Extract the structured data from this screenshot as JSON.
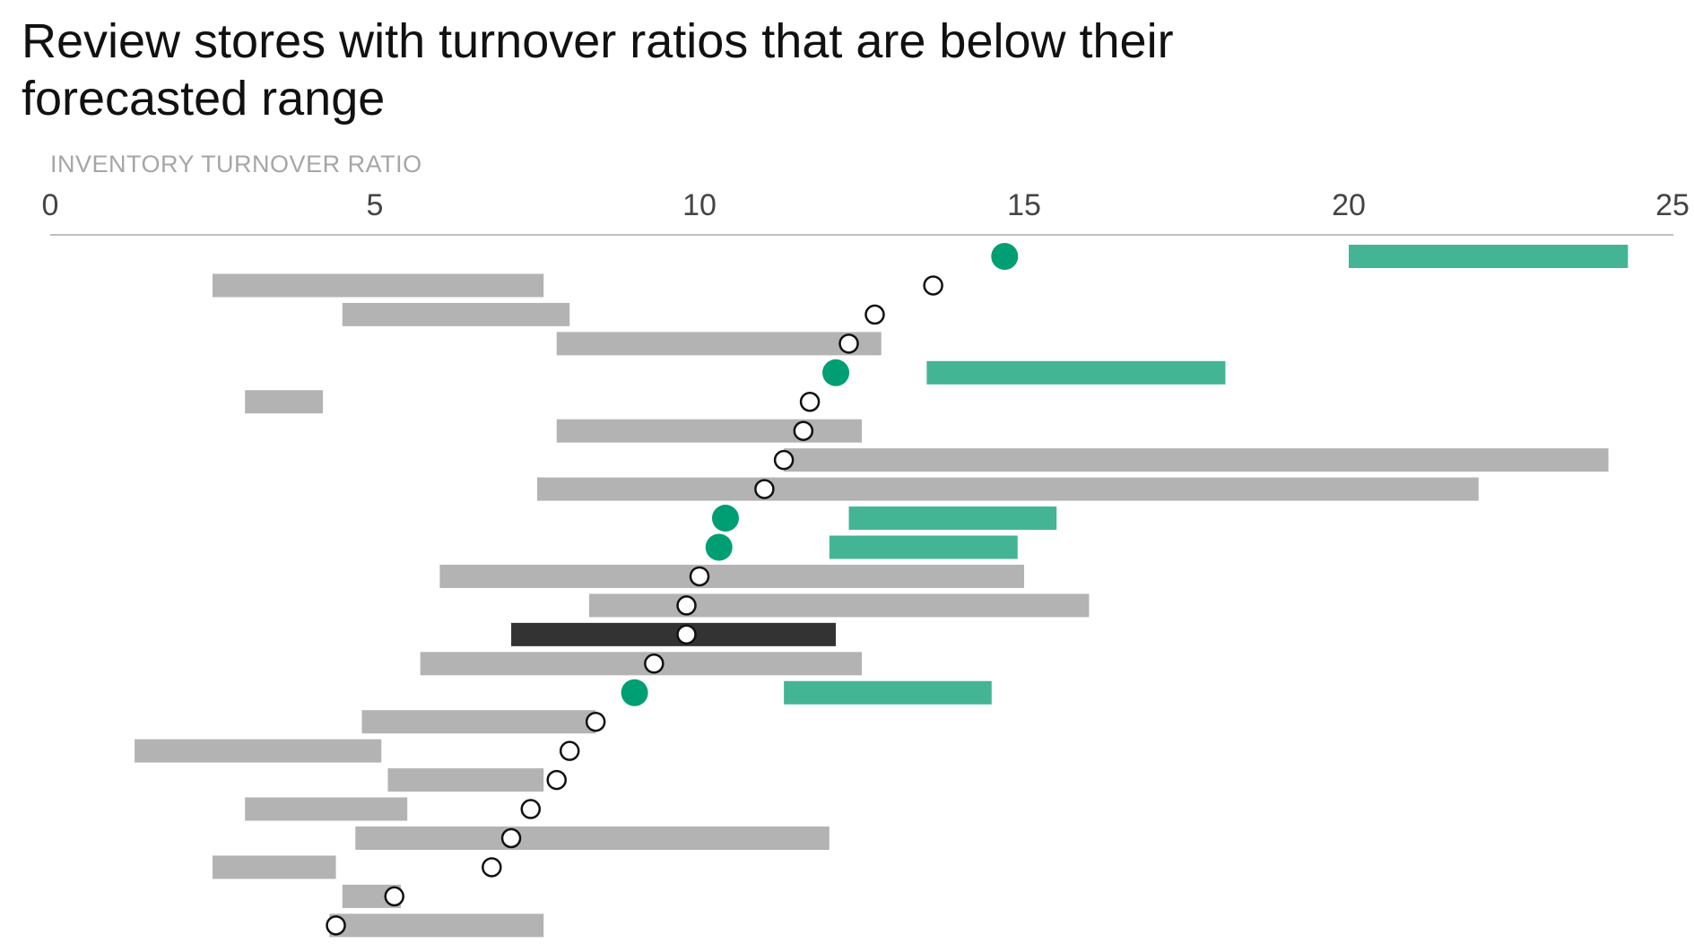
{
  "chart_data": {
    "type": "range-dot",
    "title": "Review stores with turnover ratios that are below their forecasted range",
    "xlabel": "INVENTORY TURNOVER RATIO",
    "ylabel": "",
    "xlim": [
      0,
      25
    ],
    "x_ticks": [
      0,
      5,
      10,
      15,
      20,
      25
    ],
    "grid": false,
    "colors": {
      "range_default": "#b3b3b3",
      "range_below": "#43b594",
      "range_highlight": "#333333",
      "dot_below": "#009e73",
      "dot_default_fill": "#ffffff",
      "dot_default_stroke": "#111111",
      "axis_line": "#bfbfbf"
    },
    "rows": [
      {
        "actual": 14.7,
        "range": [
          20.0,
          24.3
        ],
        "status": "below"
      },
      {
        "actual": 13.6,
        "range": [
          2.5,
          7.6
        ],
        "status": "within"
      },
      {
        "actual": 12.7,
        "range": [
          4.5,
          8.0
        ],
        "status": "within"
      },
      {
        "actual": 12.3,
        "range": [
          7.8,
          12.8
        ],
        "status": "within"
      },
      {
        "actual": 12.1,
        "range": [
          13.5,
          18.1
        ],
        "status": "below"
      },
      {
        "actual": 11.7,
        "range": [
          3.0,
          4.2
        ],
        "status": "within"
      },
      {
        "actual": 11.6,
        "range": [
          7.8,
          12.5
        ],
        "status": "within"
      },
      {
        "actual": 11.3,
        "range": [
          11.3,
          24.0
        ],
        "status": "within"
      },
      {
        "actual": 11.0,
        "range": [
          7.5,
          22.0
        ],
        "status": "within"
      },
      {
        "actual": 10.4,
        "range": [
          12.3,
          15.5
        ],
        "status": "below"
      },
      {
        "actual": 10.3,
        "range": [
          12.0,
          14.9
        ],
        "status": "below"
      },
      {
        "actual": 10.0,
        "range": [
          6.0,
          15.0
        ],
        "status": "within"
      },
      {
        "actual": 9.8,
        "range": [
          8.3,
          16.0
        ],
        "status": "within"
      },
      {
        "actual": 9.8,
        "range": [
          7.1,
          12.1
        ],
        "status": "highlight"
      },
      {
        "actual": 9.3,
        "range": [
          5.7,
          12.5
        ],
        "status": "within"
      },
      {
        "actual": 9.0,
        "range": [
          11.3,
          14.5
        ],
        "status": "below"
      },
      {
        "actual": 8.4,
        "range": [
          4.8,
          8.4
        ],
        "status": "within"
      },
      {
        "actual": 8.0,
        "range": [
          1.3,
          5.1
        ],
        "status": "within"
      },
      {
        "actual": 7.8,
        "range": [
          5.2,
          7.6
        ],
        "status": "within"
      },
      {
        "actual": 7.4,
        "range": [
          3.0,
          5.5
        ],
        "status": "within"
      },
      {
        "actual": 7.1,
        "range": [
          4.7,
          12.0
        ],
        "status": "within"
      },
      {
        "actual": 6.8,
        "range": [
          2.5,
          4.4
        ],
        "status": "within"
      },
      {
        "actual": 5.3,
        "range": [
          4.5,
          5.4
        ],
        "status": "within"
      },
      {
        "actual": 4.4,
        "range": [
          4.3,
          7.6
        ],
        "status": "within"
      }
    ]
  }
}
